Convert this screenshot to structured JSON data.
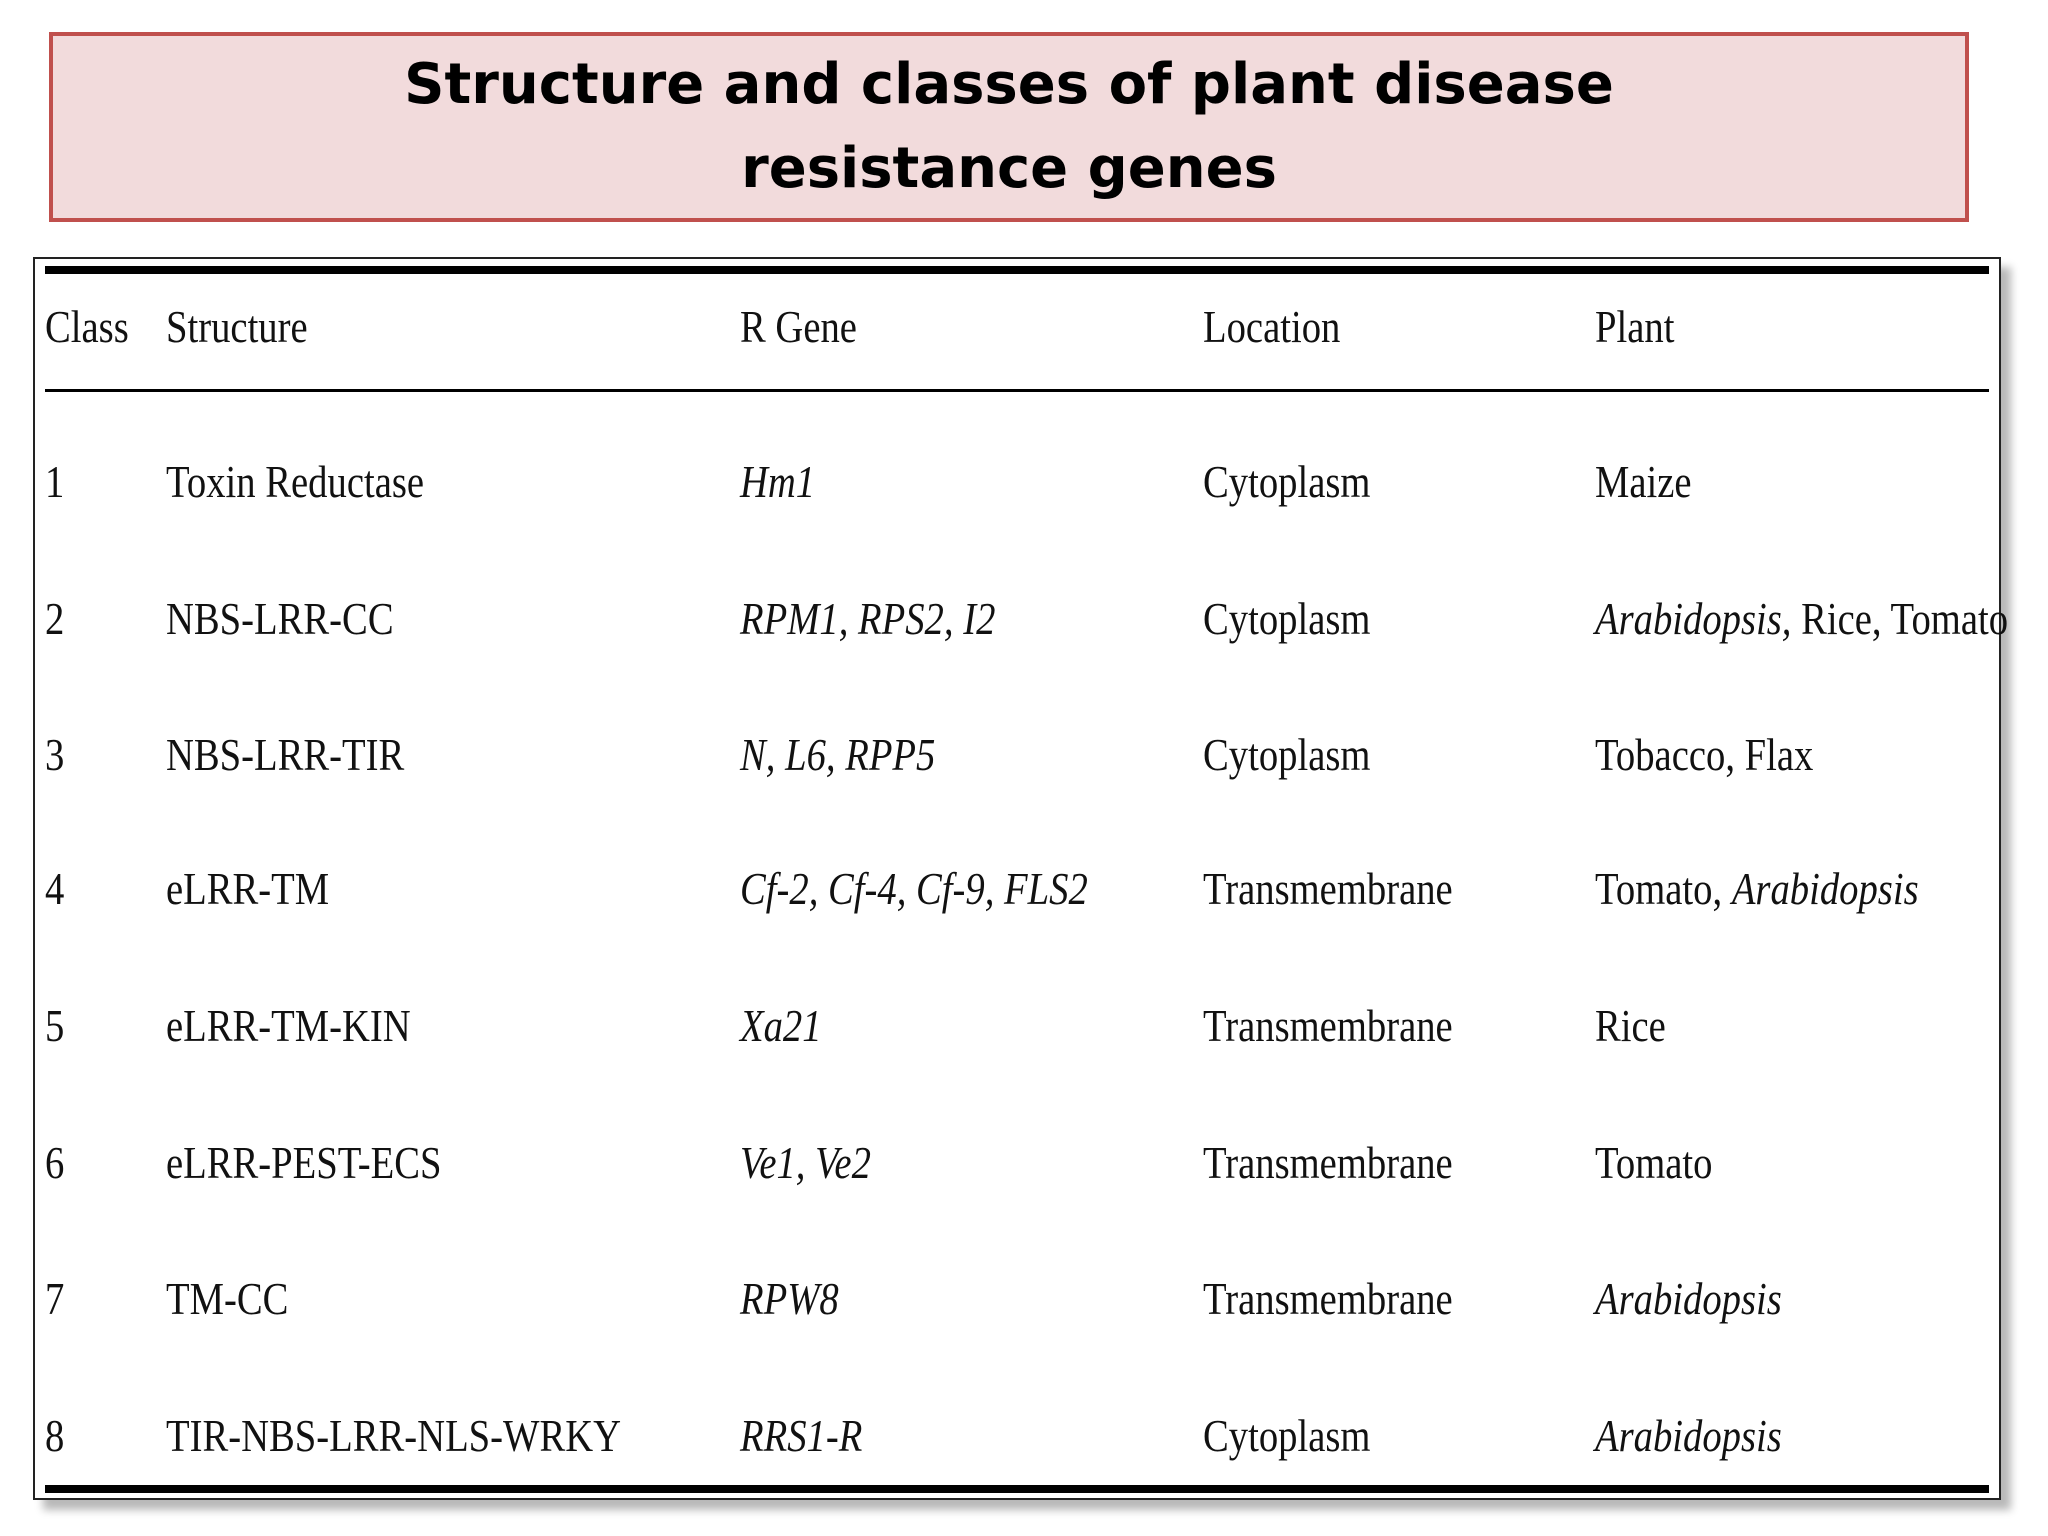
{
  "title": {
    "line1": "Structure and classes of plant disease",
    "line2": "resistance genes"
  },
  "table": {
    "headers": [
      "Class",
      "Structure",
      "R Gene",
      "Location",
      "Plant"
    ],
    "rows": [
      {
        "class": "1",
        "structure": "Toxin Reductase",
        "r_gene": "Hm1",
        "location": "Cytoplasm",
        "plant": [
          {
            "text": "Maize",
            "italic": false
          }
        ]
      },
      {
        "class": "2",
        "structure": "NBS-LRR-CC",
        "r_gene": "RPM1, RPS2, I2",
        "location": "Cytoplasm",
        "plant": [
          {
            "text": "Arabidopsis,",
            "italic": true
          },
          {
            "text": " Rice, Tomato",
            "italic": false
          }
        ]
      },
      {
        "class": "3",
        "structure": "NBS-LRR-TIR",
        "r_gene": "N, L6, RPP5",
        "location": "Cytoplasm",
        "plant": [
          {
            "text": "Tobacco, Flax",
            "italic": false
          }
        ]
      },
      {
        "class": "4",
        "structure": "eLRR-TM",
        "r_gene": "Cf-2, Cf-4, Cf-9, FLS2",
        "location": "Transmembrane",
        "plant": [
          {
            "text": "Tomato, ",
            "italic": false
          },
          {
            "text": "Arabidopsis",
            "italic": true
          }
        ]
      },
      {
        "class": "5",
        "structure": "eLRR-TM-KIN",
        "r_gene": "Xa21",
        "location": "Transmembrane",
        "plant": [
          {
            "text": "Rice",
            "italic": false
          }
        ]
      },
      {
        "class": "6",
        "structure": "eLRR-PEST-ECS",
        "r_gene": "Ve1, Ve2",
        "location": "Transmembrane",
        "plant": [
          {
            "text": "Tomato",
            "italic": false
          }
        ]
      },
      {
        "class": "7",
        "structure": "TM-CC",
        "r_gene": "RPW8",
        "location": "Transmembrane",
        "plant": [
          {
            "text": "Arabidopsis",
            "italic": true
          }
        ]
      },
      {
        "class": "8",
        "structure": "TIR-NBS-LRR-NLS-WRKY",
        "r_gene": "RRS1-R",
        "location": "Cytoplasm",
        "plant": [
          {
            "text": "Arabidopsis",
            "italic": true
          }
        ]
      }
    ]
  }
}
